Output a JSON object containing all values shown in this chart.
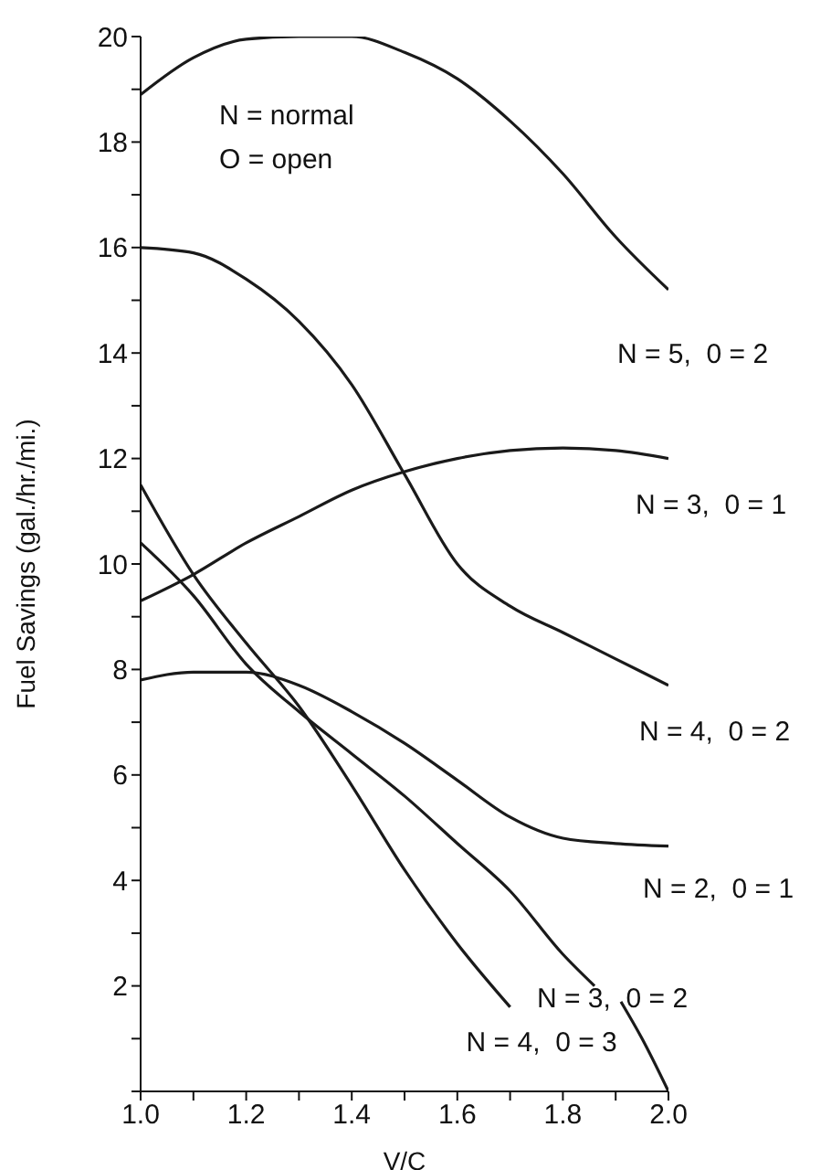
{
  "chart_data": {
    "type": "line",
    "xlabel": "V/C",
    "ylabel": "Fuel Savings (gal./hr./mi.)",
    "annotations": [
      "N = normal",
      "O = open"
    ],
    "x": [
      1.0,
      1.1,
      1.2,
      1.3,
      1.4,
      1.5,
      1.6,
      1.7,
      1.8,
      1.9,
      2.0
    ],
    "series": [
      {
        "name": "N = 5,  0 = 2",
        "color": "#1a1a1a",
        "values": [
          18.9,
          19.6,
          19.95,
          20.0,
          20.0,
          19.7,
          19.2,
          18.4,
          17.4,
          16.2,
          15.2
        ]
      },
      {
        "name": "N = 3,  0 = 1",
        "color": "#1a1a1a",
        "values": [
          9.3,
          9.8,
          10.4,
          10.9,
          11.4,
          11.75,
          12.0,
          12.15,
          12.2,
          12.15,
          12.0
        ]
      },
      {
        "name": "N = 4,  0 = 2",
        "color": "#1a1a1a",
        "values": [
          16.0,
          15.9,
          15.4,
          14.6,
          13.4,
          11.7,
          10.0,
          9.2,
          8.7,
          8.2,
          7.7
        ]
      },
      {
        "name": "N = 2,  0 = 1",
        "color": "#1a1a1a",
        "values": [
          7.8,
          7.95,
          7.95,
          7.7,
          7.2,
          6.6,
          5.9,
          5.2,
          4.8,
          4.7,
          4.65
        ]
      },
      {
        "name": "N = 3,  0 = 2",
        "color": "#1a1a1a",
        "x": [
          1.0,
          1.1,
          1.2,
          1.3,
          1.4,
          1.5,
          1.6,
          1.7,
          1.8,
          1.86,
          1.89,
          1.91,
          1.95,
          2.0
        ],
        "values": [
          10.4,
          9.4,
          8.1,
          7.2,
          6.4,
          5.6,
          4.7,
          3.8,
          2.6,
          2.0,
          null,
          1.7,
          1.0,
          0
        ]
      },
      {
        "name": "N = 4,  0 = 3",
        "color": "#1a1a1a",
        "x": [
          1.0,
          1.1,
          1.2,
          1.3,
          1.4,
          1.5,
          1.6,
          1.7
        ],
        "values": [
          11.5,
          9.8,
          8.5,
          7.3,
          5.8,
          4.2,
          2.8,
          1.6
        ]
      }
    ],
    "xlim": [
      1.0,
      2.0
    ],
    "xticks": [
      {
        "value": 1.0,
        "label": "1.0"
      },
      {
        "value": 1.1,
        "label": null
      },
      1.2,
      {
        "value": 1.3,
        "label": null
      },
      1.4,
      {
        "value": 1.5,
        "label": null
      },
      1.6,
      {
        "value": 1.7,
        "label": null
      },
      1.8,
      {
        "value": 1.9,
        "label": null
      },
      {
        "value": 2.0,
        "label": "2.0"
      }
    ],
    "ylim": [
      0,
      20
    ],
    "yticks": [
      {
        "value": 0,
        "label": null
      },
      {
        "value": 1,
        "label": null
      },
      2,
      {
        "value": 3,
        "label": null
      },
      4,
      {
        "value": 5,
        "label": null
      },
      6,
      {
        "value": 7,
        "label": null
      },
      8,
      {
        "value": 9,
        "label": null
      },
      10,
      {
        "value": 11,
        "label": null
      },
      12,
      {
        "value": 13,
        "label": null
      },
      14,
      {
        "value": 15,
        "label": null
      },
      16,
      {
        "value": 17,
        "label": null
      },
      18,
      {
        "value": 19,
        "label": null
      },
      20
    ],
    "grid": false,
    "legend": false,
    "marker": "none",
    "line_style": "solid"
  }
}
